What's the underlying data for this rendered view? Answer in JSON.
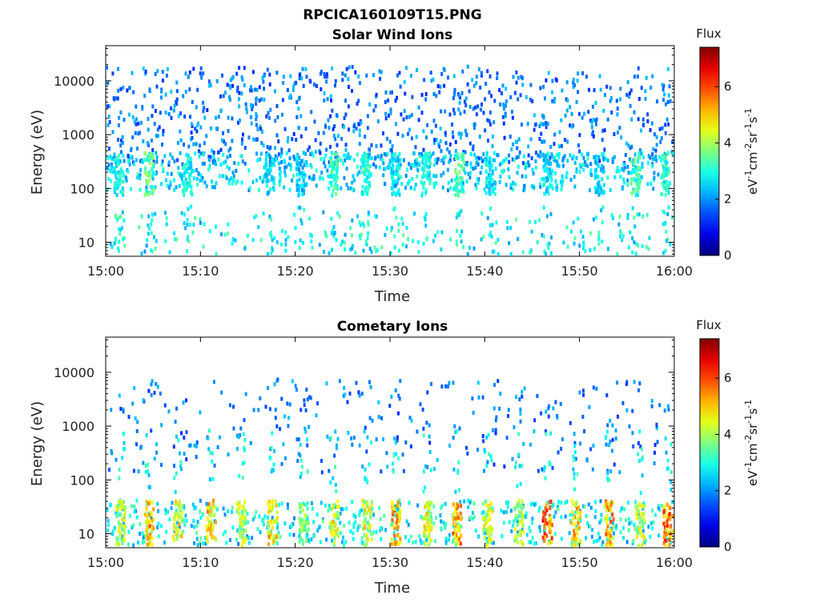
{
  "figure": {
    "title": "RPCICA160109T15.PNG"
  },
  "chart_data": [
    {
      "type": "heatmap",
      "title": "Solar Wind Ions",
      "xlabel": "Time",
      "ylabel": "Energy (eV)",
      "x_ticks": [
        "15:00",
        "15:10",
        "15:20",
        "15:30",
        "15:40",
        "15:50",
        "16:00"
      ],
      "x_range_minutes": [
        0,
        60
      ],
      "y_ticks": [
        "10",
        "100",
        "1000",
        "10000"
      ],
      "y_scale": "log",
      "y_range": [
        5.5,
        45000
      ],
      "colorbar": {
        "label": "Flux",
        "unit_label": "eV-1cm-2sr-1s-1",
        "ticks": [
          "0",
          "2",
          "4",
          "6"
        ],
        "range": [
          0,
          7.4
        ]
      },
      "bursts": [
        {
          "t": 1.3,
          "v": 3.2
        },
        {
          "t": 4.5,
          "v": 3.9
        },
        {
          "t": 8.5,
          "v": 3.2
        },
        {
          "t": 17.2,
          "v": 3.0
        },
        {
          "t": 20.5,
          "v": 2.8
        },
        {
          "t": 24.0,
          "v": 3.6
        },
        {
          "t": 27.4,
          "v": 3.4
        },
        {
          "t": 30.5,
          "v": 3.0
        },
        {
          "t": 33.7,
          "v": 3.2
        },
        {
          "t": 37.2,
          "v": 3.7
        },
        {
          "t": 40.5,
          "v": 3.0
        },
        {
          "t": 46.5,
          "v": 3.0
        },
        {
          "t": 52.0,
          "v": 2.9
        },
        {
          "t": 55.8,
          "v": 3.6
        },
        {
          "t": 59.0,
          "v": 3.4
        }
      ],
      "ion_band_energy_ev": [
        100,
        500
      ],
      "high_energy_scatter_ev": [
        300,
        20000
      ],
      "low_energy_band_ev": [
        6,
        40
      ]
    },
    {
      "type": "heatmap",
      "title": "Cometary Ions",
      "xlabel": "Time",
      "ylabel": "Energy (eV)",
      "x_ticks": [
        "15:00",
        "15:10",
        "15:20",
        "15:30",
        "15:40",
        "15:50",
        "16:00"
      ],
      "x_range_minutes": [
        0,
        60
      ],
      "y_ticks": [
        "10",
        "100",
        "1000",
        "10000"
      ],
      "y_scale": "log",
      "y_range": [
        5.5,
        45000
      ],
      "colorbar": {
        "label": "Flux",
        "unit_label": "eV-1cm-2sr-1s-1",
        "ticks": [
          "0",
          "2",
          "4",
          "6"
        ],
        "range": [
          0,
          7.4
        ]
      },
      "bursts": [
        {
          "t": 1.5,
          "v": 4.6
        },
        {
          "t": 4.5,
          "v": 5.6
        },
        {
          "t": 7.5,
          "v": 5.0
        },
        {
          "t": 11.0,
          "v": 5.4
        },
        {
          "t": 14.2,
          "v": 4.6
        },
        {
          "t": 17.5,
          "v": 5.3
        },
        {
          "t": 20.8,
          "v": 4.2
        },
        {
          "t": 24.0,
          "v": 5.0
        },
        {
          "t": 27.5,
          "v": 4.9
        },
        {
          "t": 30.5,
          "v": 5.8
        },
        {
          "t": 33.8,
          "v": 4.9
        },
        {
          "t": 37.0,
          "v": 6.0
        },
        {
          "t": 40.2,
          "v": 4.7
        },
        {
          "t": 43.5,
          "v": 4.5
        },
        {
          "t": 46.5,
          "v": 6.5
        },
        {
          "t": 49.5,
          "v": 5.4
        },
        {
          "t": 53.0,
          "v": 5.8
        },
        {
          "t": 56.3,
          "v": 4.8
        },
        {
          "t": 59.2,
          "v": 6.2
        }
      ],
      "ion_band_energy_ev": [
        7,
        45
      ],
      "high_energy_scatter_ev": [
        150,
        8000
      ],
      "low_energy_band_ev": [
        6,
        45
      ]
    }
  ]
}
